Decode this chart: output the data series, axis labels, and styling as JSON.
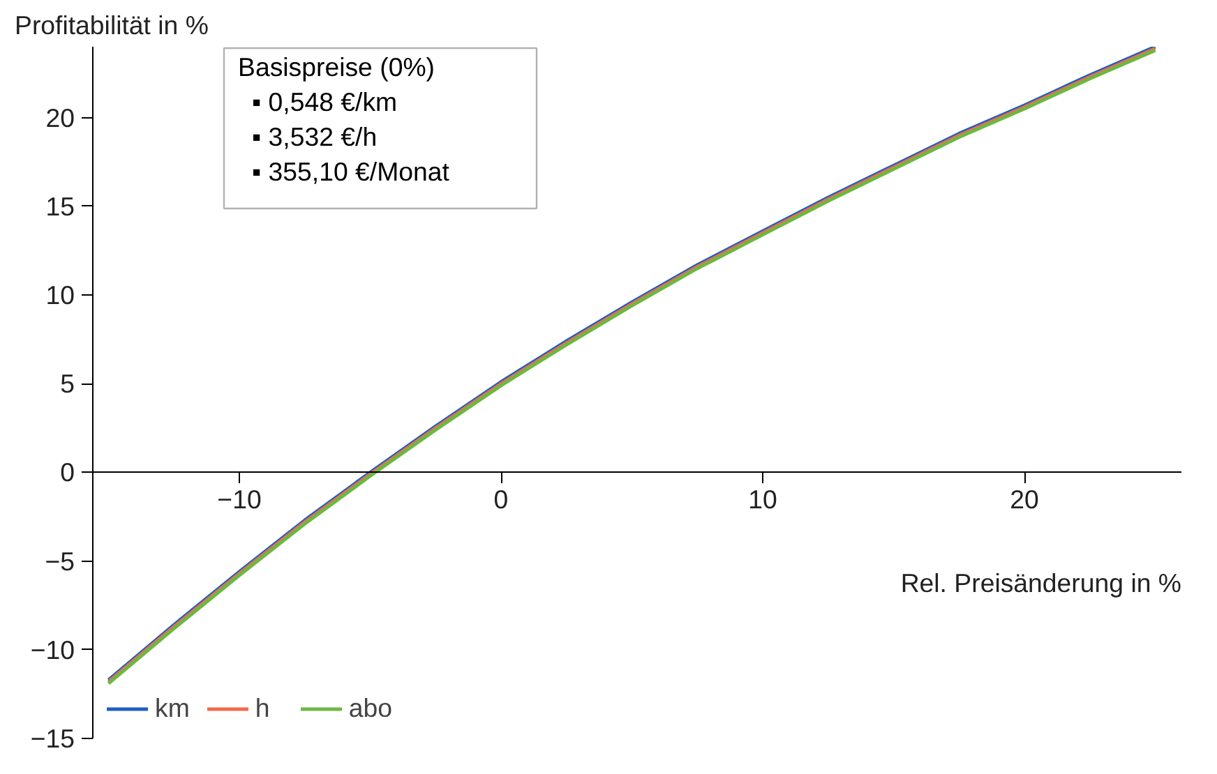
{
  "chart_data": {
    "type": "line",
    "xlabel": "Rel. Preisänderung in %",
    "ylabel": "Profitabilität in %",
    "x": [
      -15,
      -12.5,
      -10,
      -7.5,
      -5,
      -2.5,
      0,
      2.5,
      5,
      7.5,
      10,
      12.5,
      15,
      17.5,
      20,
      22.5,
      25
    ],
    "series": [
      {
        "name": "km",
        "color": "#1f5fc0",
        "values": [
          -11.7,
          -8.6,
          -5.6,
          -2.7,
          0,
          2.6,
          5.1,
          7.4,
          9.6,
          11.7,
          13.6,
          15.5,
          17.3,
          19.1,
          20.7,
          22.4,
          24.0
        ]
      },
      {
        "name": "h",
        "color": "#f26b4a",
        "values": [
          -11.8,
          -8.7,
          -5.7,
          -2.8,
          -0.1,
          2.5,
          5.0,
          7.3,
          9.5,
          11.6,
          13.5,
          15.4,
          17.2,
          19.0,
          20.6,
          22.3,
          23.9
        ]
      },
      {
        "name": "abo",
        "color": "#6cb842",
        "values": [
          -11.9,
          -8.8,
          -5.8,
          -2.9,
          -0.2,
          2.4,
          4.9,
          7.2,
          9.4,
          11.5,
          13.4,
          15.3,
          17.1,
          18.9,
          20.5,
          22.2,
          23.8
        ]
      }
    ],
    "xlim": [
      -15.6,
      26
    ],
    "ylim": [
      -15,
      24
    ],
    "xticks": [
      -10,
      0,
      10,
      20
    ],
    "yticks": [
      -15,
      -10,
      -5,
      0,
      5,
      10,
      15,
      20
    ],
    "annotations": [
      "Basispreise (0%)",
      "▪  0,548 €/km",
      "▪  3,532 €/h",
      "▪  355,10 €/Monat"
    ],
    "legend": "bottom left",
    "grid": false,
    "marker": "none",
    "line_style": "solid"
  }
}
